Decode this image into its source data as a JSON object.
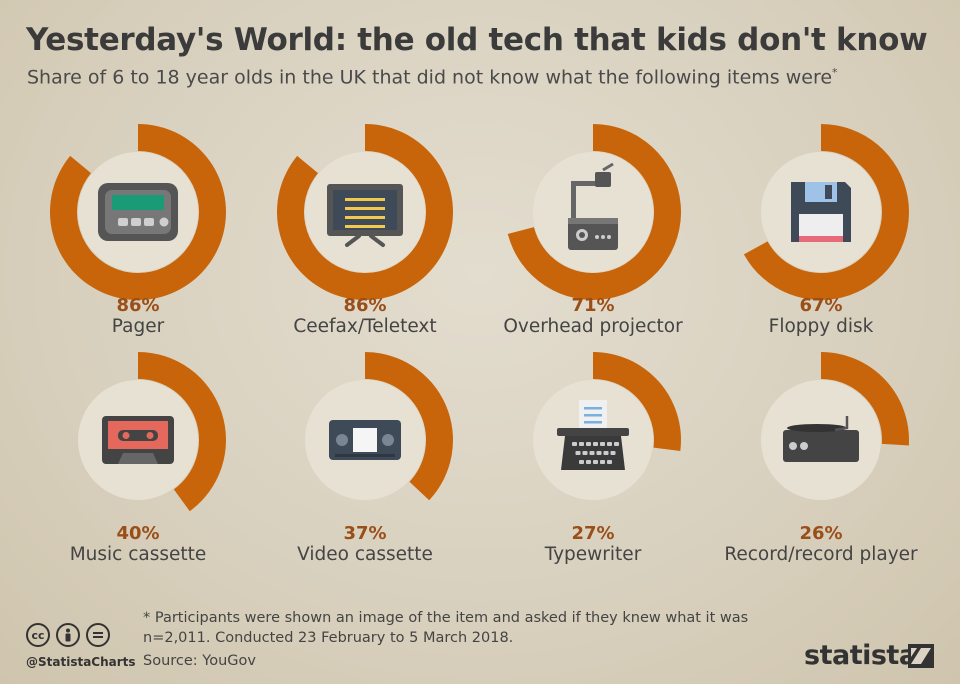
{
  "title": "Yesterday's World: the old tech that kids don't know",
  "subtitle": "Share of 6 to 18 year olds in the UK that did not know what the following items were",
  "subtitle_mark": "*",
  "footnote_line1": "* Participants were shown an image of the item and asked if they knew what it was",
  "footnote_line2": "n=2,011. Conducted 23 February to 5 March 2018.",
  "source": "Source: YouGov",
  "handle": "@StatistaCharts",
  "brand": "statista",
  "license_icons": [
    "cc-icon",
    "by-icon",
    "nd-icon"
  ],
  "colors": {
    "ring": "#c8650a",
    "inner": "#e7e1d4",
    "percent_text": "#9a4e18",
    "background": "#dcd4c3"
  },
  "chart_data": {
    "type": "pie",
    "unit": "%",
    "categories": [
      "Pager",
      "Ceefax/Teletext",
      "Overhead projector",
      "Floppy disk",
      "Music cassette",
      "Video cassette",
      "Typewriter",
      "Record/record player"
    ],
    "values": [
      86,
      86,
      71,
      67,
      40,
      37,
      27,
      26
    ],
    "labels": [
      "86%",
      "86%",
      "71%",
      "67%",
      "40%",
      "37%",
      "27%",
      "26%"
    ],
    "icons": [
      "pager-icon",
      "teletext-tv-icon",
      "overhead-projector-icon",
      "floppy-disk-icon",
      "music-cassette-icon",
      "video-cassette-icon",
      "typewriter-icon",
      "record-player-icon"
    ]
  }
}
